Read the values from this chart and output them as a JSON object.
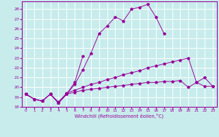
{
  "bg_color": "#c8ecec",
  "grid_color": "#ffffff",
  "line_color": "#990099",
  "marker": "*",
  "xlabel": "Windchill (Refroidissement éolien,°C)",
  "xlim": [
    -0.5,
    23.5
  ],
  "ylim": [
    18,
    28.8
  ],
  "xticks": [
    0,
    1,
    2,
    3,
    4,
    5,
    6,
    7,
    8,
    9,
    10,
    11,
    12,
    13,
    14,
    15,
    16,
    17,
    18,
    19,
    20,
    21,
    22,
    23
  ],
  "yticks": [
    18,
    19,
    20,
    21,
    22,
    23,
    24,
    25,
    26,
    27,
    28
  ],
  "line1_x": [
    0,
    1,
    2,
    3,
    4,
    5,
    6,
    7,
    8,
    9,
    10,
    11,
    12,
    13,
    14,
    15,
    16,
    17,
    18,
    19,
    20,
    21,
    22,
    23
  ],
  "line1_y": [
    19.3,
    18.8,
    18.6,
    19.3,
    18.4,
    19.3,
    19.5,
    19.7,
    19.8,
    19.9,
    20.0,
    20.1,
    20.2,
    20.3,
    20.4,
    20.5,
    20.5,
    20.6,
    20.6,
    20.7,
    20.0,
    20.5,
    20.1,
    20.1
  ],
  "line2_x": [
    0,
    1,
    2,
    3,
    4,
    5,
    6,
    7,
    8,
    9,
    10,
    11,
    12,
    13,
    14,
    15,
    16,
    17,
    18,
    19,
    20,
    21,
    22,
    23
  ],
  "line2_y": [
    19.3,
    18.8,
    18.6,
    19.3,
    18.5,
    19.4,
    19.7,
    20.0,
    20.3,
    20.5,
    20.8,
    21.0,
    21.3,
    21.5,
    21.7,
    22.0,
    22.2,
    22.4,
    22.6,
    22.8,
    23.0,
    20.5,
    21.0,
    20.1
  ],
  "line3_x": [
    0,
    1,
    2,
    3,
    4,
    5,
    6,
    7,
    8,
    9,
    10,
    11,
    12,
    13,
    14,
    15,
    16,
    17
  ],
  "line3_y": [
    19.3,
    18.8,
    18.6,
    19.3,
    18.4,
    19.3,
    20.3,
    21.8,
    23.5,
    25.5,
    26.3,
    27.2,
    26.8,
    28.0,
    28.2,
    28.5,
    27.2,
    25.5
  ],
  "line4_x": [
    0,
    1,
    2,
    3,
    4,
    5,
    6,
    7
  ],
  "line4_y": [
    19.3,
    18.8,
    18.6,
    19.3,
    18.4,
    19.3,
    20.5,
    23.2
  ]
}
